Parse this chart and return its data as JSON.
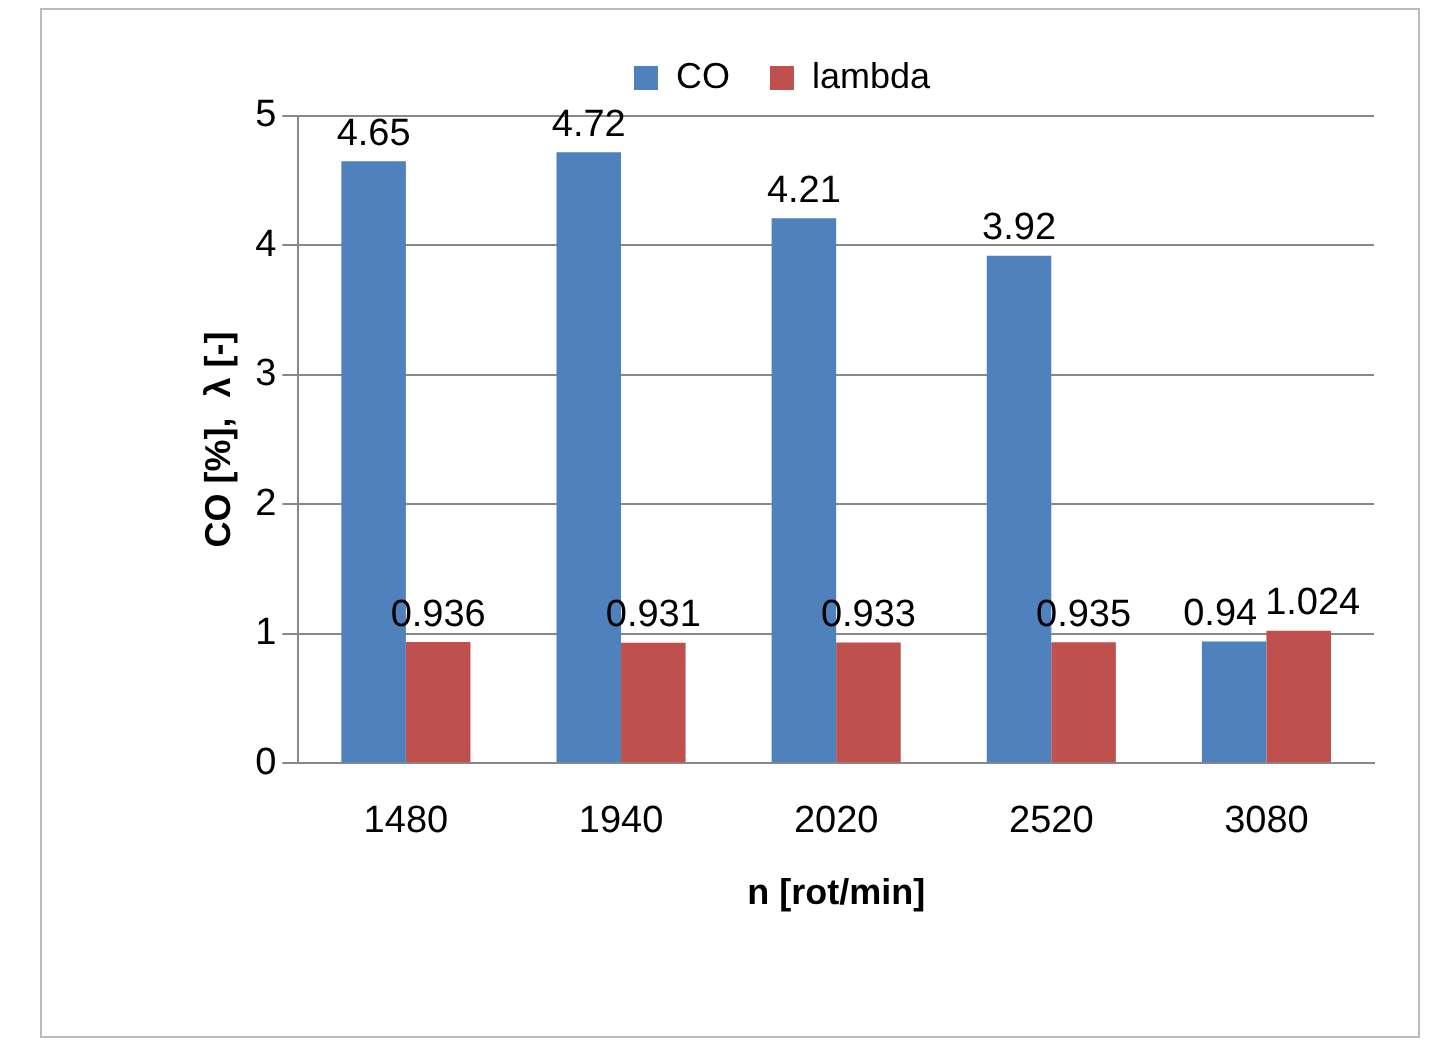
{
  "chart_data": {
    "type": "bar",
    "xlabel": "n [rot/min]",
    "ylabel": "CO [%],  λ [-]",
    "categories": [
      "1480",
      "1940",
      "2020",
      "2520",
      "3080"
    ],
    "series": [
      {
        "name": "CO",
        "color": "#4f81bd",
        "values": [
          4.65,
          4.72,
          4.21,
          3.92,
          0.94
        ]
      },
      {
        "name": "lambda",
        "color": "#c0504d",
        "values": [
          0.936,
          0.931,
          0.933,
          0.935,
          1.024
        ]
      }
    ],
    "ylim": [
      0,
      5
    ],
    "yticks": [
      0,
      1,
      2,
      3,
      4,
      5
    ],
    "grid": "y",
    "legend": "top",
    "data_labels": true
  }
}
